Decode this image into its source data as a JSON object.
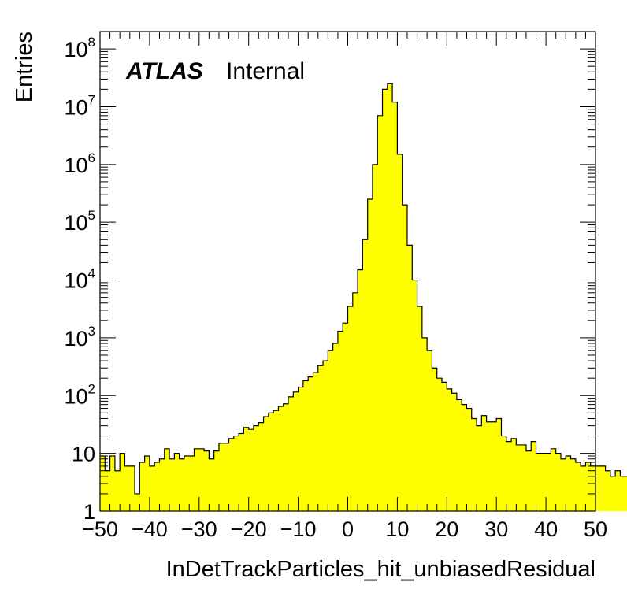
{
  "chart_data": {
    "type": "bar",
    "histogram_style": "step-filled",
    "fill_color": "#ffff00",
    "line_color": "#000000",
    "xlabel": "InDetTrackParticles_hit_unbiasedResidual",
    "ylabel": "Entries",
    "xlim": [
      -50,
      50
    ],
    "ylim": [
      1,
      200000000
    ],
    "y_scale": "log",
    "bin_width": 1,
    "x_ticks": [
      -50,
      -40,
      -30,
      -20,
      -10,
      0,
      10,
      20,
      30,
      40,
      50
    ],
    "x_tick_labels": [
      "−50",
      "−40",
      "−30",
      "−20",
      "−10",
      "0",
      "10",
      "20",
      "30",
      "40",
      "50"
    ],
    "y_ticks": [
      {
        "value": 1,
        "base": "1",
        "exp": ""
      },
      {
        "value": 10,
        "base": "10",
        "exp": ""
      },
      {
        "value": 100,
        "base": "10",
        "exp": "2"
      },
      {
        "value": 1000,
        "base": "10",
        "exp": "3"
      },
      {
        "value": 10000,
        "base": "10",
        "exp": "4"
      },
      {
        "value": 100000,
        "base": "10",
        "exp": "5"
      },
      {
        "value": 1000000,
        "base": "10",
        "exp": "6"
      },
      {
        "value": 10000000,
        "base": "10",
        "exp": "7"
      },
      {
        "value": 100000000,
        "base": "10",
        "exp": "8"
      }
    ],
    "label_brand": "ATLAS",
    "label_status": "Internal",
    "bin_edges_start": -50,
    "values": [
      9,
      5,
      9,
      5,
      10,
      6,
      6,
      2,
      7,
      9,
      6,
      7,
      8,
      12,
      8,
      10,
      8,
      9,
      9,
      12,
      12,
      11,
      8,
      11,
      15,
      15,
      18,
      20,
      22,
      28,
      26,
      30,
      34,
      43,
      50,
      55,
      65,
      72,
      95,
      115,
      140,
      180,
      210,
      250,
      330,
      400,
      600,
      800,
      1300,
      1800,
      3500,
      6000,
      15000,
      50000,
      250000,
      1000000,
      7000000,
      20000000,
      25000000,
      12000000,
      1500000,
      200000,
      40000,
      10000,
      3500,
      1000,
      600,
      300,
      200,
      170,
      130,
      110,
      85,
      70,
      60,
      40,
      30,
      45,
      35,
      35,
      40,
      20,
      16,
      18,
      14,
      14,
      11,
      16,
      10,
      10,
      10,
      12,
      10,
      8,
      9,
      8,
      7,
      6,
      7,
      6,
      6,
      6,
      5,
      4,
      5,
      4,
      4,
      4,
      4,
      4
    ]
  }
}
